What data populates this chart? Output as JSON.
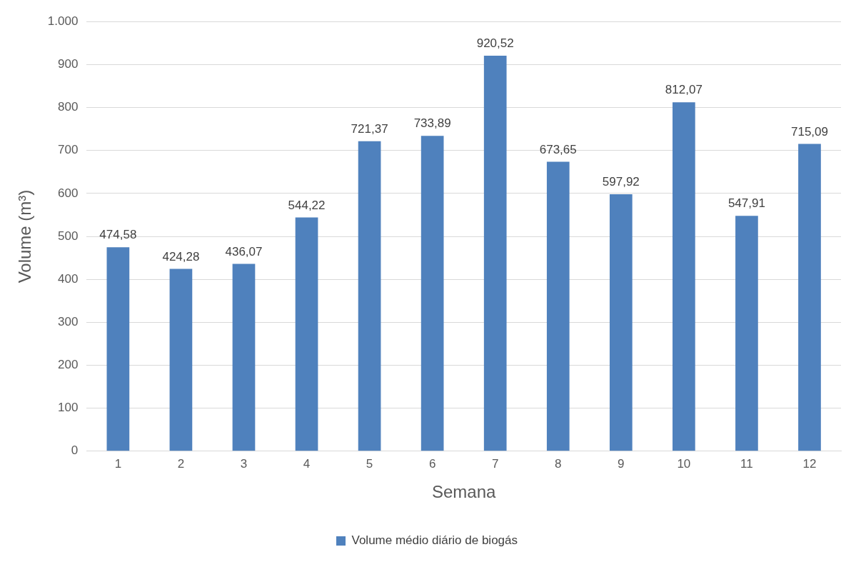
{
  "chart_data": {
    "type": "bar",
    "xlabel": "Semana",
    "ylabel": "Volume (m³)",
    "categories": [
      "1",
      "2",
      "3",
      "4",
      "5",
      "6",
      "7",
      "8",
      "9",
      "10",
      "11",
      "12"
    ],
    "series": [
      {
        "name": "Volume médio diário de biogás",
        "color": "#4f81bd",
        "values": [
          474.58,
          424.28,
          436.07,
          544.22,
          721.37,
          733.89,
          920.52,
          673.65,
          597.92,
          812.07,
          547.91,
          715.09
        ],
        "value_labels": [
          "474,58",
          "424,28",
          "436,07",
          "544,22",
          "721,37",
          "733,89",
          "920,52",
          "673,65",
          "597,92",
          "812,07",
          "547,91",
          "715,09"
        ]
      }
    ],
    "ylim": [
      0,
      1000
    ],
    "yticks": [
      {
        "value": 0,
        "label": "0"
      },
      {
        "value": 100,
        "label": "100"
      },
      {
        "value": 200,
        "label": "200"
      },
      {
        "value": 300,
        "label": "300"
      },
      {
        "value": 400,
        "label": "400"
      },
      {
        "value": 500,
        "label": "500"
      },
      {
        "value": 600,
        "label": "600"
      },
      {
        "value": 700,
        "label": "700"
      },
      {
        "value": 800,
        "label": "800"
      },
      {
        "value": 900,
        "label": "900"
      },
      {
        "value": 1000,
        "label": "1.000"
      }
    ],
    "grid": "y",
    "legend": "bottom"
  }
}
